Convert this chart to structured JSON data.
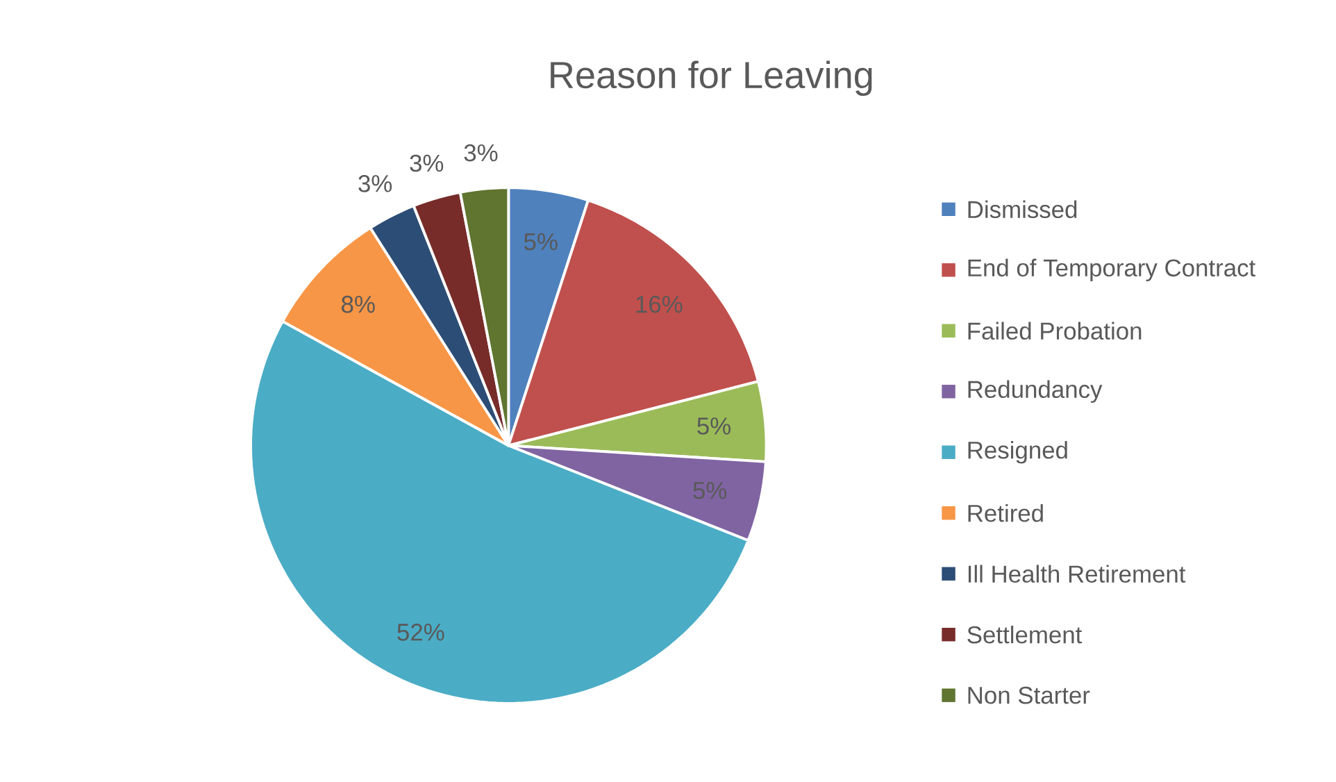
{
  "chart_data": {
    "type": "pie",
    "title": "Reason for Leaving",
    "categories": [
      "Dismissed",
      "End of Temporary Contract",
      "Failed Probation",
      "Redundancy",
      "Resigned",
      "Retired",
      "Ill Health Retirement",
      "Settlement",
      "Non Starter"
    ],
    "values": [
      5,
      16,
      5,
      5,
      52,
      8,
      3,
      3,
      3
    ],
    "value_labels": [
      "5%",
      "16%",
      "5%",
      "5%",
      "52%",
      "8%",
      "3%",
      "3%",
      "3%"
    ],
    "colors": [
      "#4f81bd",
      "#c0504d",
      "#9bbb59",
      "#8064a2",
      "#4bacc6",
      "#f79646",
      "#2c4d75",
      "#772c2a",
      "#5f7530"
    ],
    "legend": "right"
  }
}
